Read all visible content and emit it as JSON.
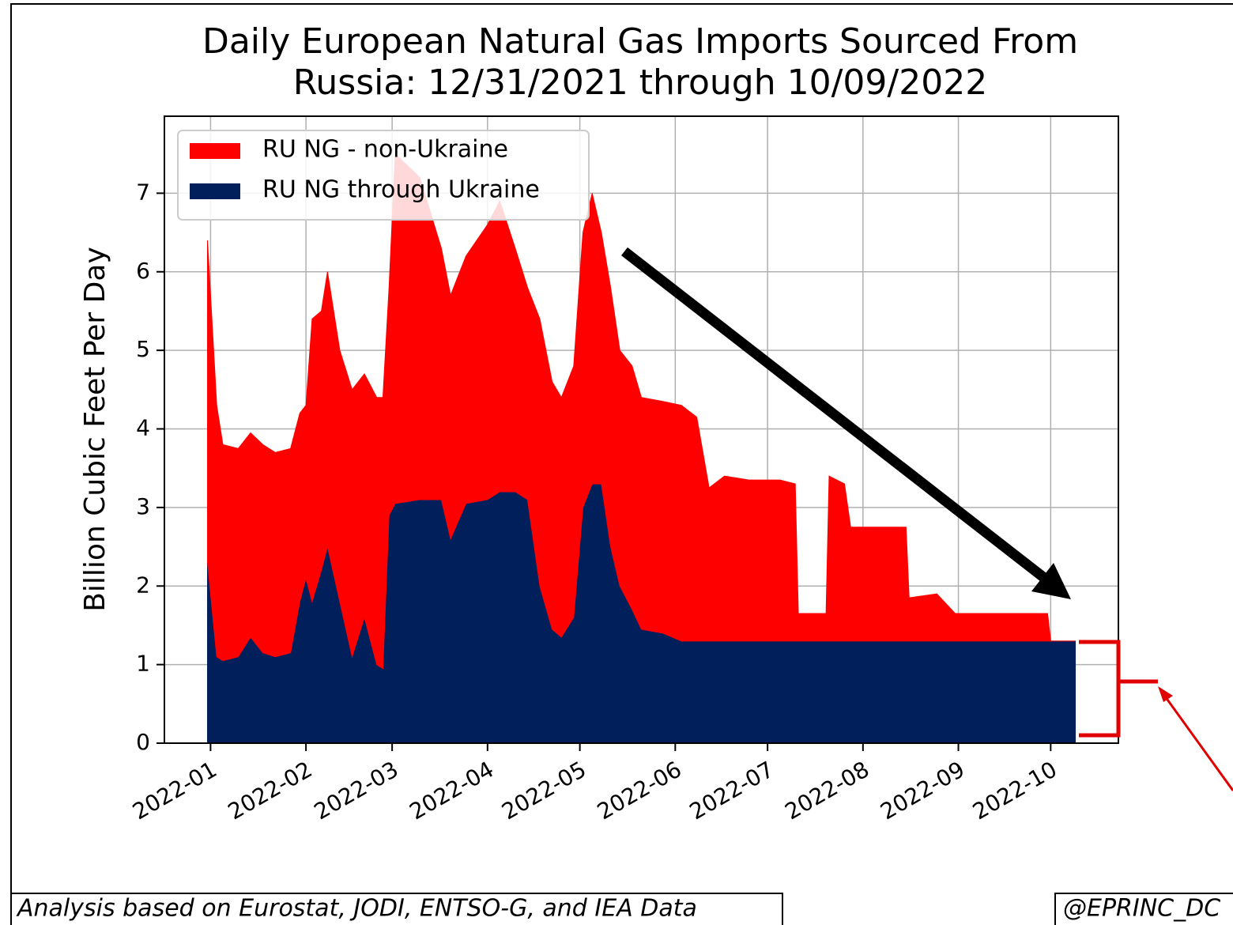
{
  "chart_data": {
    "type": "stacked_area",
    "title": [
      "Daily European Natural Gas Imports Sourced From",
      "Russia: 12/31/2021 through 10/09/2022"
    ],
    "ylabel": "Billion Cubic Feet Per Day",
    "x": [
      "2021-12-31",
      "2022-01-03",
      "2022-01-05",
      "2022-01-10",
      "2022-01-14",
      "2022-01-18",
      "2022-01-22",
      "2022-01-27",
      "2022-01-30",
      "2022-02-01",
      "2022-02-03",
      "2022-02-06",
      "2022-02-08",
      "2022-02-12",
      "2022-02-16",
      "2022-02-20",
      "2022-02-24",
      "2022-02-26",
      "2022-02-28",
      "2022-03-02",
      "2022-03-10",
      "2022-03-17",
      "2022-03-20",
      "2022-03-25",
      "2022-04-01",
      "2022-04-05",
      "2022-04-10",
      "2022-04-14",
      "2022-04-18",
      "2022-04-22",
      "2022-04-25",
      "2022-04-29",
      "2022-05-02",
      "2022-05-05",
      "2022-05-08",
      "2022-05-11",
      "2022-05-14",
      "2022-05-18",
      "2022-05-21",
      "2022-05-28",
      "2022-06-03",
      "2022-06-08",
      "2022-06-12",
      "2022-06-17",
      "2022-06-25",
      "2022-07-05",
      "2022-07-10",
      "2022-07-11",
      "2022-07-20",
      "2022-07-21",
      "2022-07-26",
      "2022-07-28",
      "2022-08-15",
      "2022-08-16",
      "2022-08-25",
      "2022-08-31",
      "2022-09-30",
      "2022-10-01",
      "2022-10-09"
    ],
    "series": [
      {
        "name": "RU NG - non-Ukraine",
        "color": "#ff0000",
        "values": [
          4.1,
          3.2,
          2.75,
          2.65,
          2.6,
          2.65,
          2.6,
          2.6,
          2.4,
          2.2,
          3.6,
          3.3,
          3.5,
          3.2,
          3.4,
          3.1,
          3.4,
          3.45,
          2.9,
          4.45,
          4.1,
          3.2,
          3.1,
          3.15,
          3.5,
          3.7,
          3.1,
          2.7,
          3.4,
          3.15,
          3.05,
          3.2,
          3.5,
          3.7,
          3.2,
          3.3,
          3.0,
          3.1,
          2.95,
          2.95,
          3.0,
          2.85,
          1.95,
          2.1,
          2.05,
          2.05,
          2.0,
          0.35,
          0.35,
          2.1,
          2.0,
          1.45,
          1.45,
          0.55,
          0.6,
          0.35,
          0.35,
          0,
          0
        ]
      },
      {
        "name": "RU NG through Ukraine",
        "color": "#001f5b",
        "values": [
          2.3,
          1.1,
          1.05,
          1.1,
          1.35,
          1.15,
          1.1,
          1.15,
          1.8,
          2.1,
          1.8,
          2.2,
          2.5,
          1.8,
          1.1,
          1.6,
          1.0,
          0.95,
          2.9,
          3.05,
          3.1,
          3.1,
          2.6,
          3.05,
          3.1,
          3.2,
          3.2,
          3.1,
          2.0,
          1.45,
          1.35,
          1.6,
          3.0,
          3.3,
          3.3,
          2.5,
          2.0,
          1.7,
          1.45,
          1.4,
          1.3,
          1.3,
          1.3,
          1.3,
          1.3,
          1.3,
          1.3,
          1.3,
          1.3,
          1.3,
          1.3,
          1.3,
          1.3,
          1.3,
          1.3,
          1.3,
          1.3,
          1.3,
          1.3
        ]
      }
    ],
    "xlim": [
      "2021-12-17",
      "2022-10-23"
    ],
    "xticks": [
      {
        "value": "2022-01-01",
        "label": "2022-01"
      },
      {
        "value": "2022-02-01",
        "label": "2022-02"
      },
      {
        "value": "2022-03-01",
        "label": "2022-03"
      },
      {
        "value": "2022-04-01",
        "label": "2022-04"
      },
      {
        "value": "2022-05-01",
        "label": "2022-05"
      },
      {
        "value": "2022-06-01",
        "label": "2022-06"
      },
      {
        "value": "2022-07-01",
        "label": "2022-07"
      },
      {
        "value": "2022-08-01",
        "label": "2022-08"
      },
      {
        "value": "2022-09-01",
        "label": "2022-09"
      },
      {
        "value": "2022-10-01",
        "label": "2022-10"
      }
    ],
    "ylim": [
      0,
      7.98
    ],
    "yticks": [
      0,
      1,
      2,
      3,
      4,
      5,
      6,
      7
    ],
    "grid": true,
    "legend": "upper left",
    "footer_left": "Analysis based on Eurostat, JODI, ENTSO-G, and IEA Data",
    "footer_right": "@EPRINC_DC"
  }
}
